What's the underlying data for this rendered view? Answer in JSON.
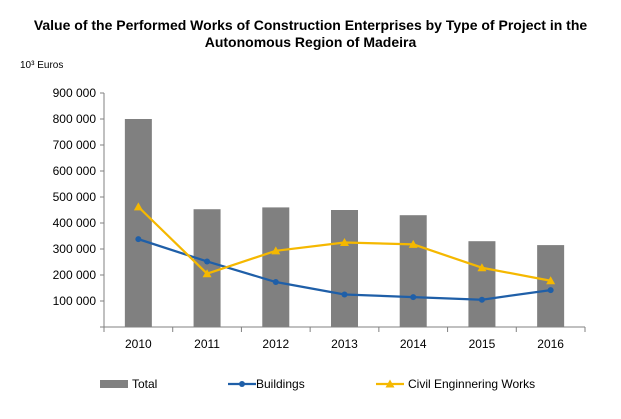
{
  "chart_data": {
    "type": "bar+line",
    "title_lines": [
      "Value of the Performed Works of Construction  Enterprises  by Type of Project in the",
      "Autonomous  Region of Madeira"
    ],
    "ylabel": "10³ Euros",
    "categories": [
      "2010",
      "2011",
      "2012",
      "2013",
      "2014",
      "2015",
      "2016"
    ],
    "yticks": [
      "100 000",
      "200 000",
      "300 000",
      "400 000",
      "500 000",
      "600 000",
      "700 000",
      "800 000",
      "900 000"
    ],
    "ylim": [
      0,
      900000
    ],
    "grid": false,
    "legend_position": "bottom",
    "series": [
      {
        "name": "Total",
        "kind": "bar",
        "color": "#808080",
        "values": [
          800000,
          453000,
          460000,
          450000,
          430000,
          330000,
          315000
        ]
      },
      {
        "name": "Buildings",
        "kind": "line",
        "marker": "circle",
        "color": "#1f5fa8",
        "values": [
          338000,
          252000,
          173000,
          125000,
          115000,
          105000,
          142000
        ]
      },
      {
        "name": "Civil Enginnering Works",
        "kind": "line",
        "marker": "triangle",
        "color": "#f5b800",
        "values": [
          462000,
          205000,
          293000,
          325000,
          318000,
          228000,
          178000
        ]
      }
    ]
  }
}
